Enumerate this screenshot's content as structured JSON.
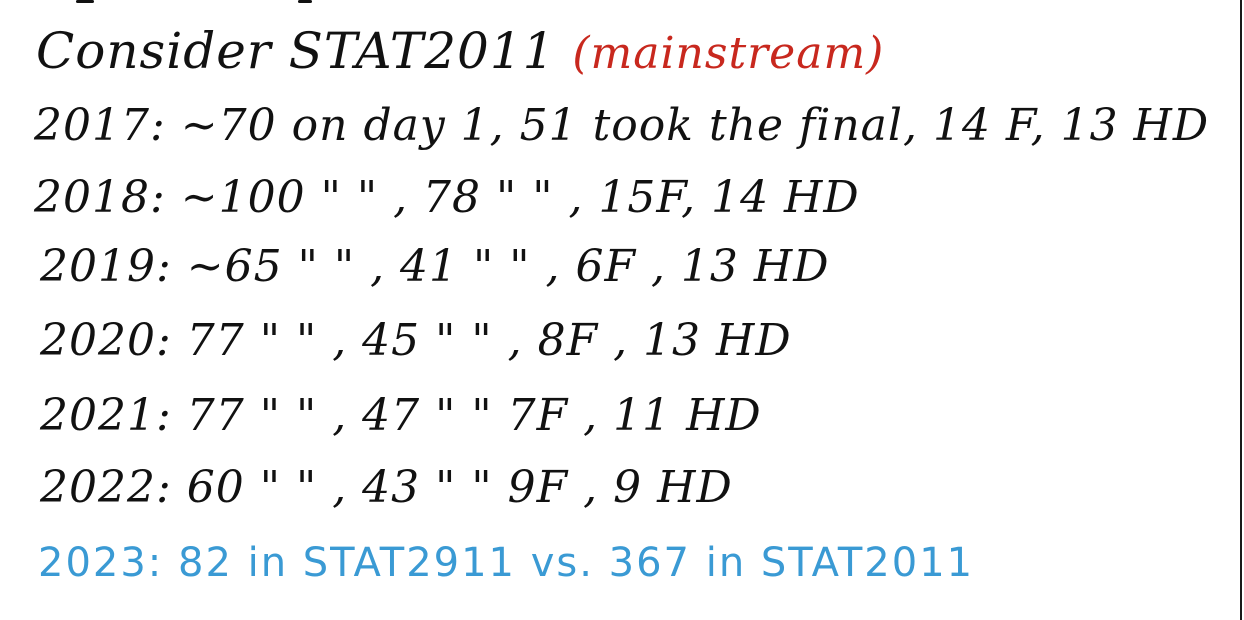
{
  "notes": {
    "heading": "Consider STAT2011",
    "heading_tag": "(mainstream)",
    "rows": [
      "2017: ~70 on day 1, 51 took the final, 14 F, 13 HD",
      "2018: ~100 \"  \" , 78  \"  \" , 15F, 14 HD",
      "2019: ~65  \"  \" , 41  \"  \" , 6F , 13 HD",
      "2020: 77  \"  \" , 45  \"  \" , 8F , 13 HD",
      "2021: 77  \"  \" , 47  \"  \"  7F , 11 HD",
      "2022: 60  \"  \" , 43  \"  \"  9F , 9 HD"
    ],
    "footer": "2023: 82 in STAT2911 vs. 367 in STAT2011"
  },
  "colors": {
    "ink": "#111111",
    "heading_tag": "#c8281e",
    "footer": "#3a9ad4"
  }
}
